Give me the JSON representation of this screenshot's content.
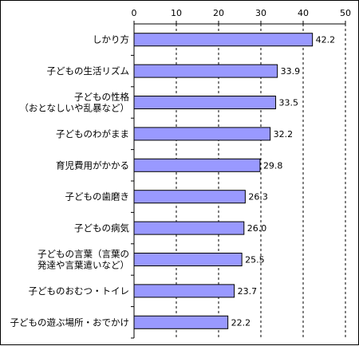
{
  "chart_data": {
    "type": "bar",
    "orientation": "horizontal",
    "title": "",
    "xlabel": "",
    "ylabel": "",
    "xlim": [
      0,
      50
    ],
    "x_ticks": [
      0,
      10,
      20,
      30,
      40,
      50
    ],
    "grid": "vertical dashed",
    "legend": "none",
    "categories": [
      [
        "しかり方"
      ],
      [
        "子どもの生活リズム"
      ],
      [
        "子どもの性格",
        "（おとなしいや乱暴など）"
      ],
      [
        "子どものわがまま"
      ],
      [
        "育児費用がかかる"
      ],
      [
        "子どもの歯磨き"
      ],
      [
        "子どもの病気"
      ],
      [
        "子どもの言葉（言葉の",
        "発達や言葉遣いなど）"
      ],
      [
        "子どものおむつ・トイレ"
      ],
      [
        "子どもの遊ぶ場所・おでかけ"
      ]
    ],
    "values": [
      42.2,
      33.9,
      33.5,
      32.2,
      29.8,
      26.3,
      26.0,
      25.5,
      23.7,
      22.2
    ],
    "value_labels": [
      "42.2",
      "33.9",
      "33.5",
      "32.2",
      "29.8",
      "26.3",
      "26.0",
      "25.5",
      "23.7",
      "22.2"
    ],
    "colors": {
      "bar_fill": "#9999ff",
      "bar_stroke": "#000000",
      "axis": "#000000",
      "grid": "#000000"
    }
  }
}
